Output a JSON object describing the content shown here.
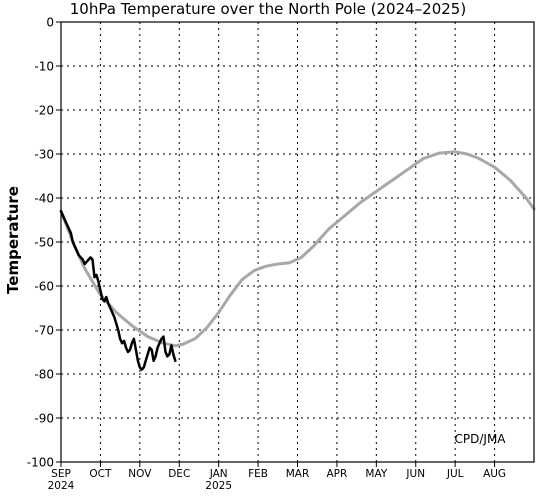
{
  "chart_data": {
    "type": "line",
    "title": "10hPa Temperature over the North Pole (2024–2025)",
    "ylabel": "Temperature",
    "xlabel": "",
    "ylim": [
      -100,
      0
    ],
    "yticks": [
      0,
      -10,
      -20,
      -30,
      -40,
      -50,
      -60,
      -70,
      -80,
      -90,
      -100
    ],
    "xticks": [
      {
        "month": 0,
        "label": "SEP",
        "year": "2024"
      },
      {
        "month": 1,
        "label": "OCT",
        "year": ""
      },
      {
        "month": 2,
        "label": "NOV",
        "year": ""
      },
      {
        "month": 3,
        "label": "DEC",
        "year": ""
      },
      {
        "month": 4,
        "label": "JAN",
        "year": "2025"
      },
      {
        "month": 5,
        "label": "FEB",
        "year": ""
      },
      {
        "month": 6,
        "label": "MAR",
        "year": ""
      },
      {
        "month": 7,
        "label": "APR",
        "year": ""
      },
      {
        "month": 8,
        "label": "MAY",
        "year": ""
      },
      {
        "month": 9,
        "label": "JUN",
        "year": ""
      },
      {
        "month": 10,
        "label": "JUL",
        "year": ""
      },
      {
        "month": 11,
        "label": "AUG",
        "year": ""
      }
    ],
    "xlim_months": [
      0,
      12
    ],
    "grid": true,
    "annotation": "CPD/JMA",
    "series": [
      {
        "name": "",
        "color": "#a8a8a8",
        "x": [
          0,
          0.3,
          0.6,
          1.0,
          1.4,
          1.8,
          2.2,
          2.6,
          2.9,
          3.1,
          3.4,
          3.7,
          4.0,
          4.3,
          4.6,
          4.9,
          5.2,
          5.5,
          5.8,
          6.1,
          6.4,
          6.8,
          7.2,
          7.6,
          8.0,
          8.4,
          8.8,
          9.2,
          9.6,
          10.0,
          10.3,
          10.6,
          11.0,
          11.4,
          11.8,
          12.0
        ],
        "y": [
          -43,
          -50,
          -56,
          -62,
          -66,
          -69,
          -71.5,
          -73,
          -73.6,
          -73.2,
          -72,
          -69.5,
          -66,
          -62,
          -58.5,
          -56.5,
          -55.5,
          -55,
          -54.7,
          -53.5,
          -51,
          -47,
          -44,
          -41,
          -38.5,
          -36,
          -33.5,
          -31,
          -29.8,
          -29.5,
          -30,
          -31,
          -33,
          -36,
          -40,
          -42.5
        ]
      },
      {
        "name": "",
        "color": "#000000",
        "x": [
          0,
          0.05,
          0.1,
          0.15,
          0.2,
          0.25,
          0.3,
          0.35,
          0.4,
          0.45,
          0.5,
          0.55,
          0.6,
          0.65,
          0.7,
          0.75,
          0.8,
          0.85,
          0.9,
          0.95,
          1.0,
          1.05,
          1.1,
          1.15,
          1.2,
          1.25,
          1.3,
          1.35,
          1.4,
          1.45,
          1.5,
          1.55,
          1.6,
          1.65,
          1.7,
          1.75,
          1.8,
          1.85,
          1.9,
          1.95,
          2.0,
          2.05,
          2.1,
          2.15,
          2.2,
          2.25,
          2.3,
          2.35,
          2.4,
          2.45,
          2.5,
          2.55,
          2.6,
          2.65,
          2.7,
          2.75,
          2.8,
          2.85,
          2.9
        ],
        "y": [
          -43,
          -44,
          -45,
          -46,
          -47,
          -48,
          -50,
          -51,
          -52,
          -53,
          -53.5,
          -54,
          -55,
          -54.5,
          -54,
          -53.5,
          -54,
          -58,
          -57.5,
          -59,
          -61,
          -63,
          -63.5,
          -62.5,
          -64,
          -65,
          -66,
          -67,
          -68.5,
          -70,
          -72,
          -73,
          -72.5,
          -74,
          -75,
          -74.5,
          -73,
          -72,
          -74.5,
          -77,
          -78.5,
          -79,
          -78.5,
          -77,
          -75.5,
          -74,
          -74.5,
          -77,
          -76,
          -74,
          -73,
          -72,
          -71.5,
          -75,
          -76,
          -75.5,
          -73.5,
          -75.5,
          -77
        ]
      }
    ]
  }
}
